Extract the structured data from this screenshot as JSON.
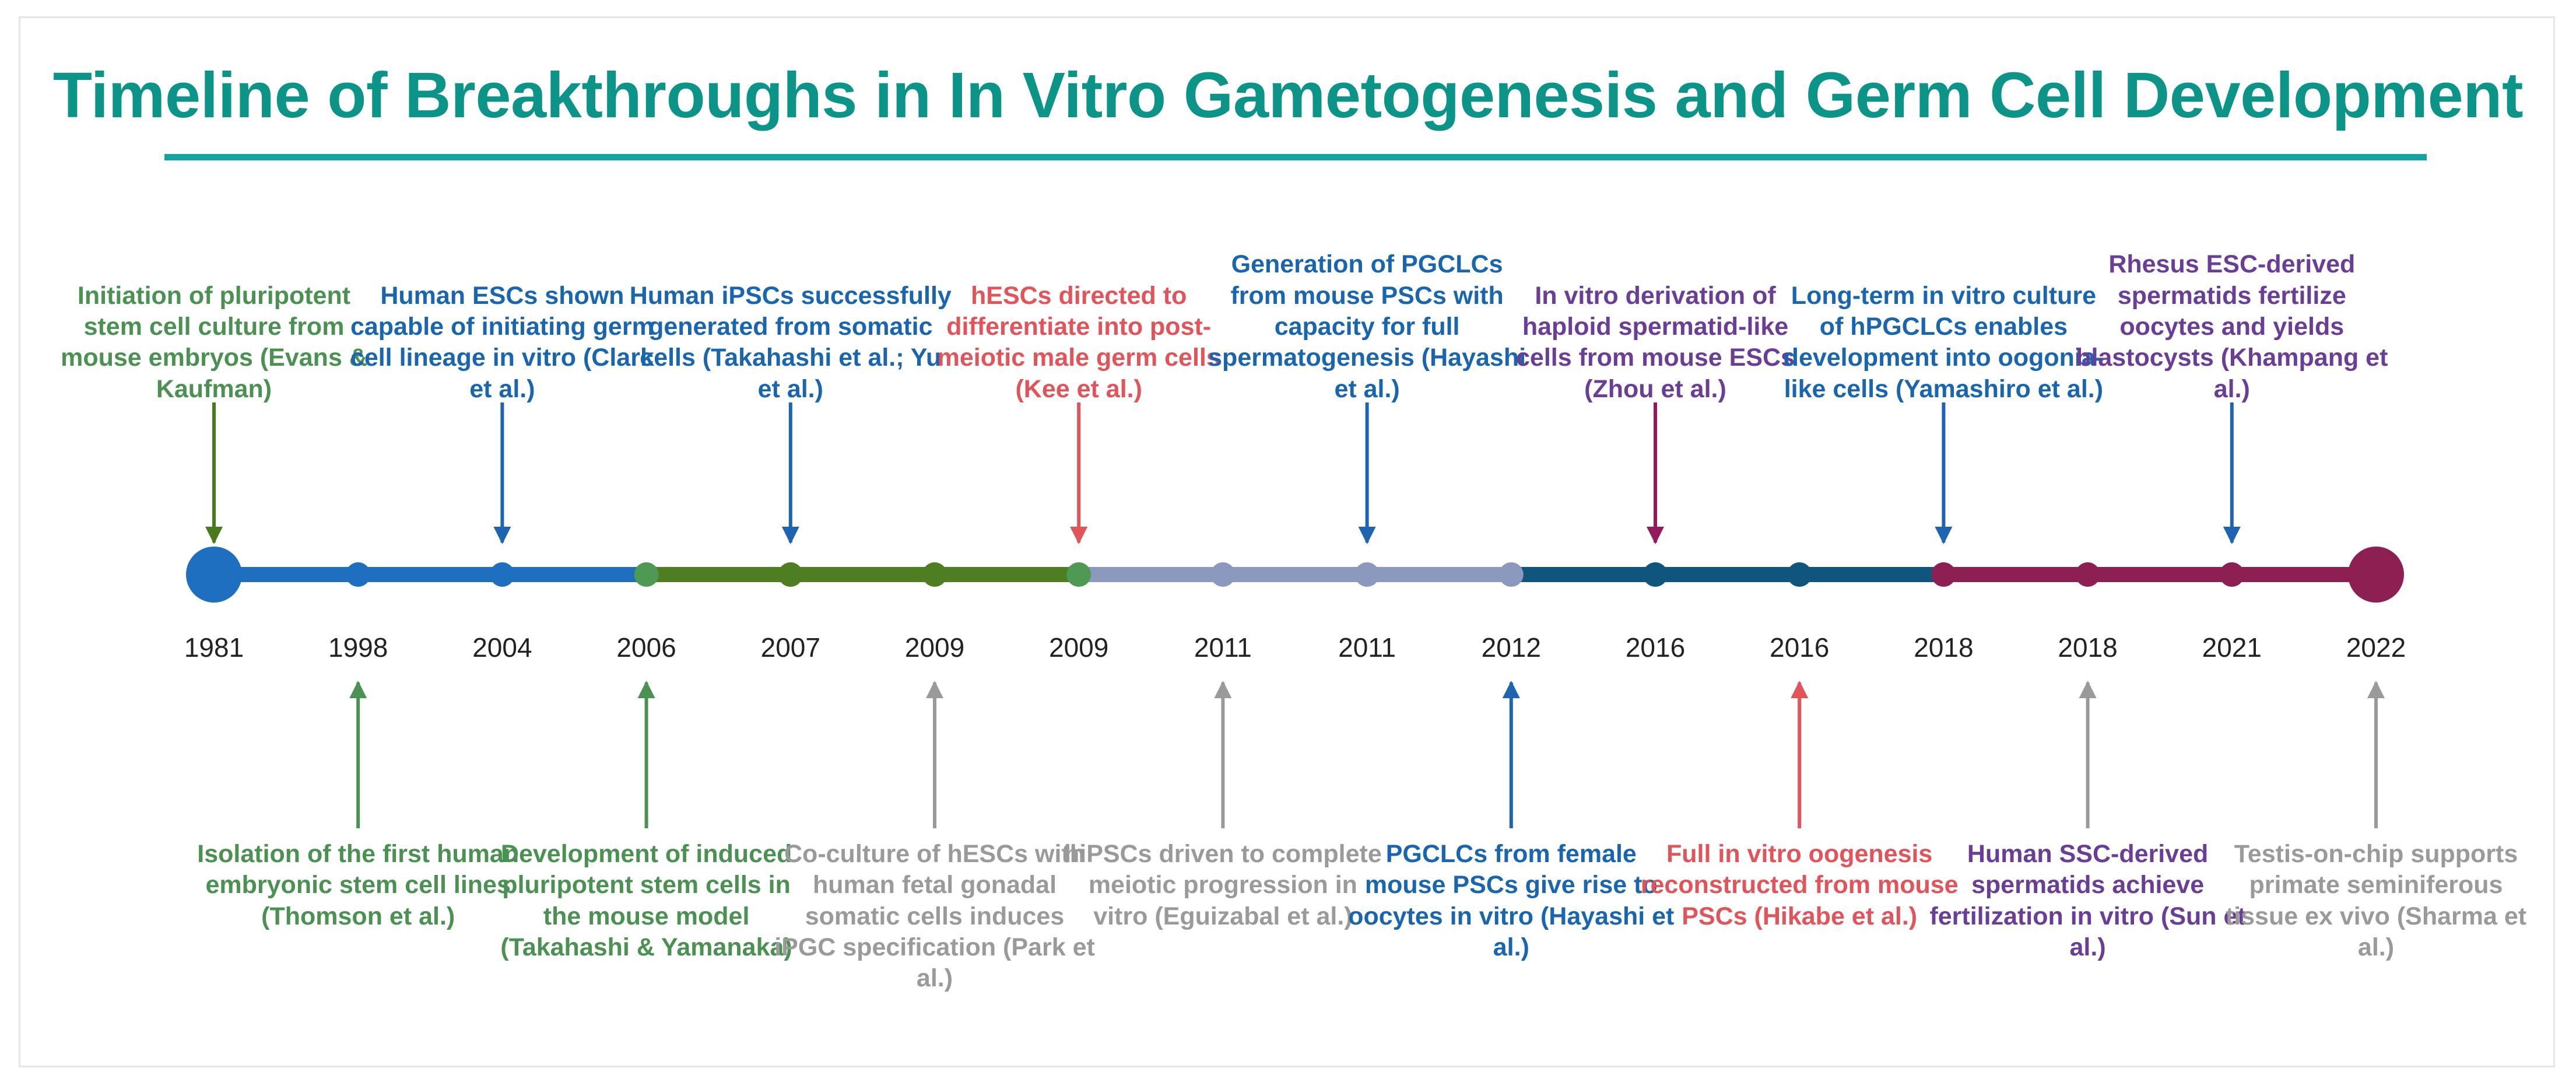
{
  "title": "Timeline of Breakthroughs in In Vitro Gametogenesis and Germ Cell Development",
  "colors": {
    "title": "#0c9488",
    "title_rule": "#14a3a3",
    "segments": [
      "#1e6fbf",
      "#4e7d22",
      "#8b99bf",
      "#0f557c",
      "#8d1f52"
    ],
    "labels": {
      "green": "#4a9152",
      "blue": "#1a65b0",
      "red": "#e0545a",
      "purple": "#6a3e96",
      "gray": "#9a9a9a"
    },
    "arrows": {
      "green_dark": "#4a7a1e",
      "green": "#4a9152",
      "blue": "#1f64b0",
      "red": "#e0545a",
      "magenta": "#931a5c",
      "gray": "#9a9a9a"
    }
  },
  "events": [
    {
      "year": "1981",
      "side": "top",
      "color": "green",
      "arrow": "green_dark",
      "text": "Initiation of pluripotent stem cell culture from mouse embryos (Evans & Kaufman)"
    },
    {
      "year": "1998",
      "side": "bottom",
      "color": "green",
      "arrow": "green",
      "text": "Isolation of the first human embryonic stem cell lines (Thomson et al.)"
    },
    {
      "year": "2004",
      "side": "top",
      "color": "blue",
      "arrow": "blue",
      "text": "Human ESCs shown capable of initiating germ cell lineage in vitro (Clark et al.)"
    },
    {
      "year": "2006",
      "side": "bottom",
      "color": "green",
      "arrow": "green",
      "text": "Development of induced pluripotent stem cells in the mouse model (Takahashi & Yamanaka)"
    },
    {
      "year": "2007",
      "side": "top",
      "color": "blue",
      "arrow": "blue",
      "text": "Human iPSCs successfully generated from somatic cells (Takahashi et al.; Yu et al.)"
    },
    {
      "year": "2009",
      "side": "bottom",
      "color": "gray",
      "arrow": "gray",
      "text": "Co-culture of hESCs with human fetal gonadal somatic cells induces iPGC specification (Park et al.)"
    },
    {
      "year": "2009",
      "side": "top",
      "color": "red",
      "arrow": "red",
      "text": "hESCs directed to differentiate into post-meiotic male germ cells (Kee et al.)"
    },
    {
      "year": "2011",
      "side": "bottom",
      "color": "gray",
      "arrow": "gray",
      "text": "hiPSCs driven to complete meiotic progression in vitro (Eguizabal et al.)"
    },
    {
      "year": "2011",
      "side": "top",
      "color": "blue",
      "arrow": "blue",
      "text": "Generation of PGCLCs from mouse PSCs with capacity for full spermatogenesis (Hayashi et al.)"
    },
    {
      "year": "2012",
      "side": "bottom",
      "color": "blue",
      "arrow": "blue",
      "text": "PGCLCs from female mouse PSCs give rise to oocytes in vitro (Hayashi et al.)"
    },
    {
      "year": "2016",
      "side": "top",
      "color": "purple",
      "arrow": "magenta",
      "text": "In vitro derivation of haploid spermatid-like cells from mouse ESCs (Zhou et al.)"
    },
    {
      "year": "2016",
      "side": "bottom",
      "color": "red",
      "arrow": "red",
      "text": "Full in vitro oogenesis reconstructed from mouse PSCs (Hikabe et al.)"
    },
    {
      "year": "2018",
      "side": "top",
      "color": "blue",
      "arrow": "blue",
      "text": "Long-term in vitro culture of hPGCLCs enables development into oogonia-like cells (Yamashiro et al.)"
    },
    {
      "year": "2018",
      "side": "bottom",
      "color": "purple",
      "arrow": "gray",
      "text": "Human SSC-derived spermatids achieve fertilization in vitro (Sun et al.)"
    },
    {
      "year": "2021",
      "side": "top",
      "color": "purple",
      "arrow": "blue",
      "text": "Rhesus ESC-derived spermatids fertilize oocytes and yields blastocysts (Khampang et al.)"
    },
    {
      "year": "2022",
      "side": "bottom",
      "color": "gray",
      "arrow": "gray",
      "text": "Testis-on-chip supports primate seminiferous tissue ex vivo (Sharma et al.)"
    }
  ]
}
